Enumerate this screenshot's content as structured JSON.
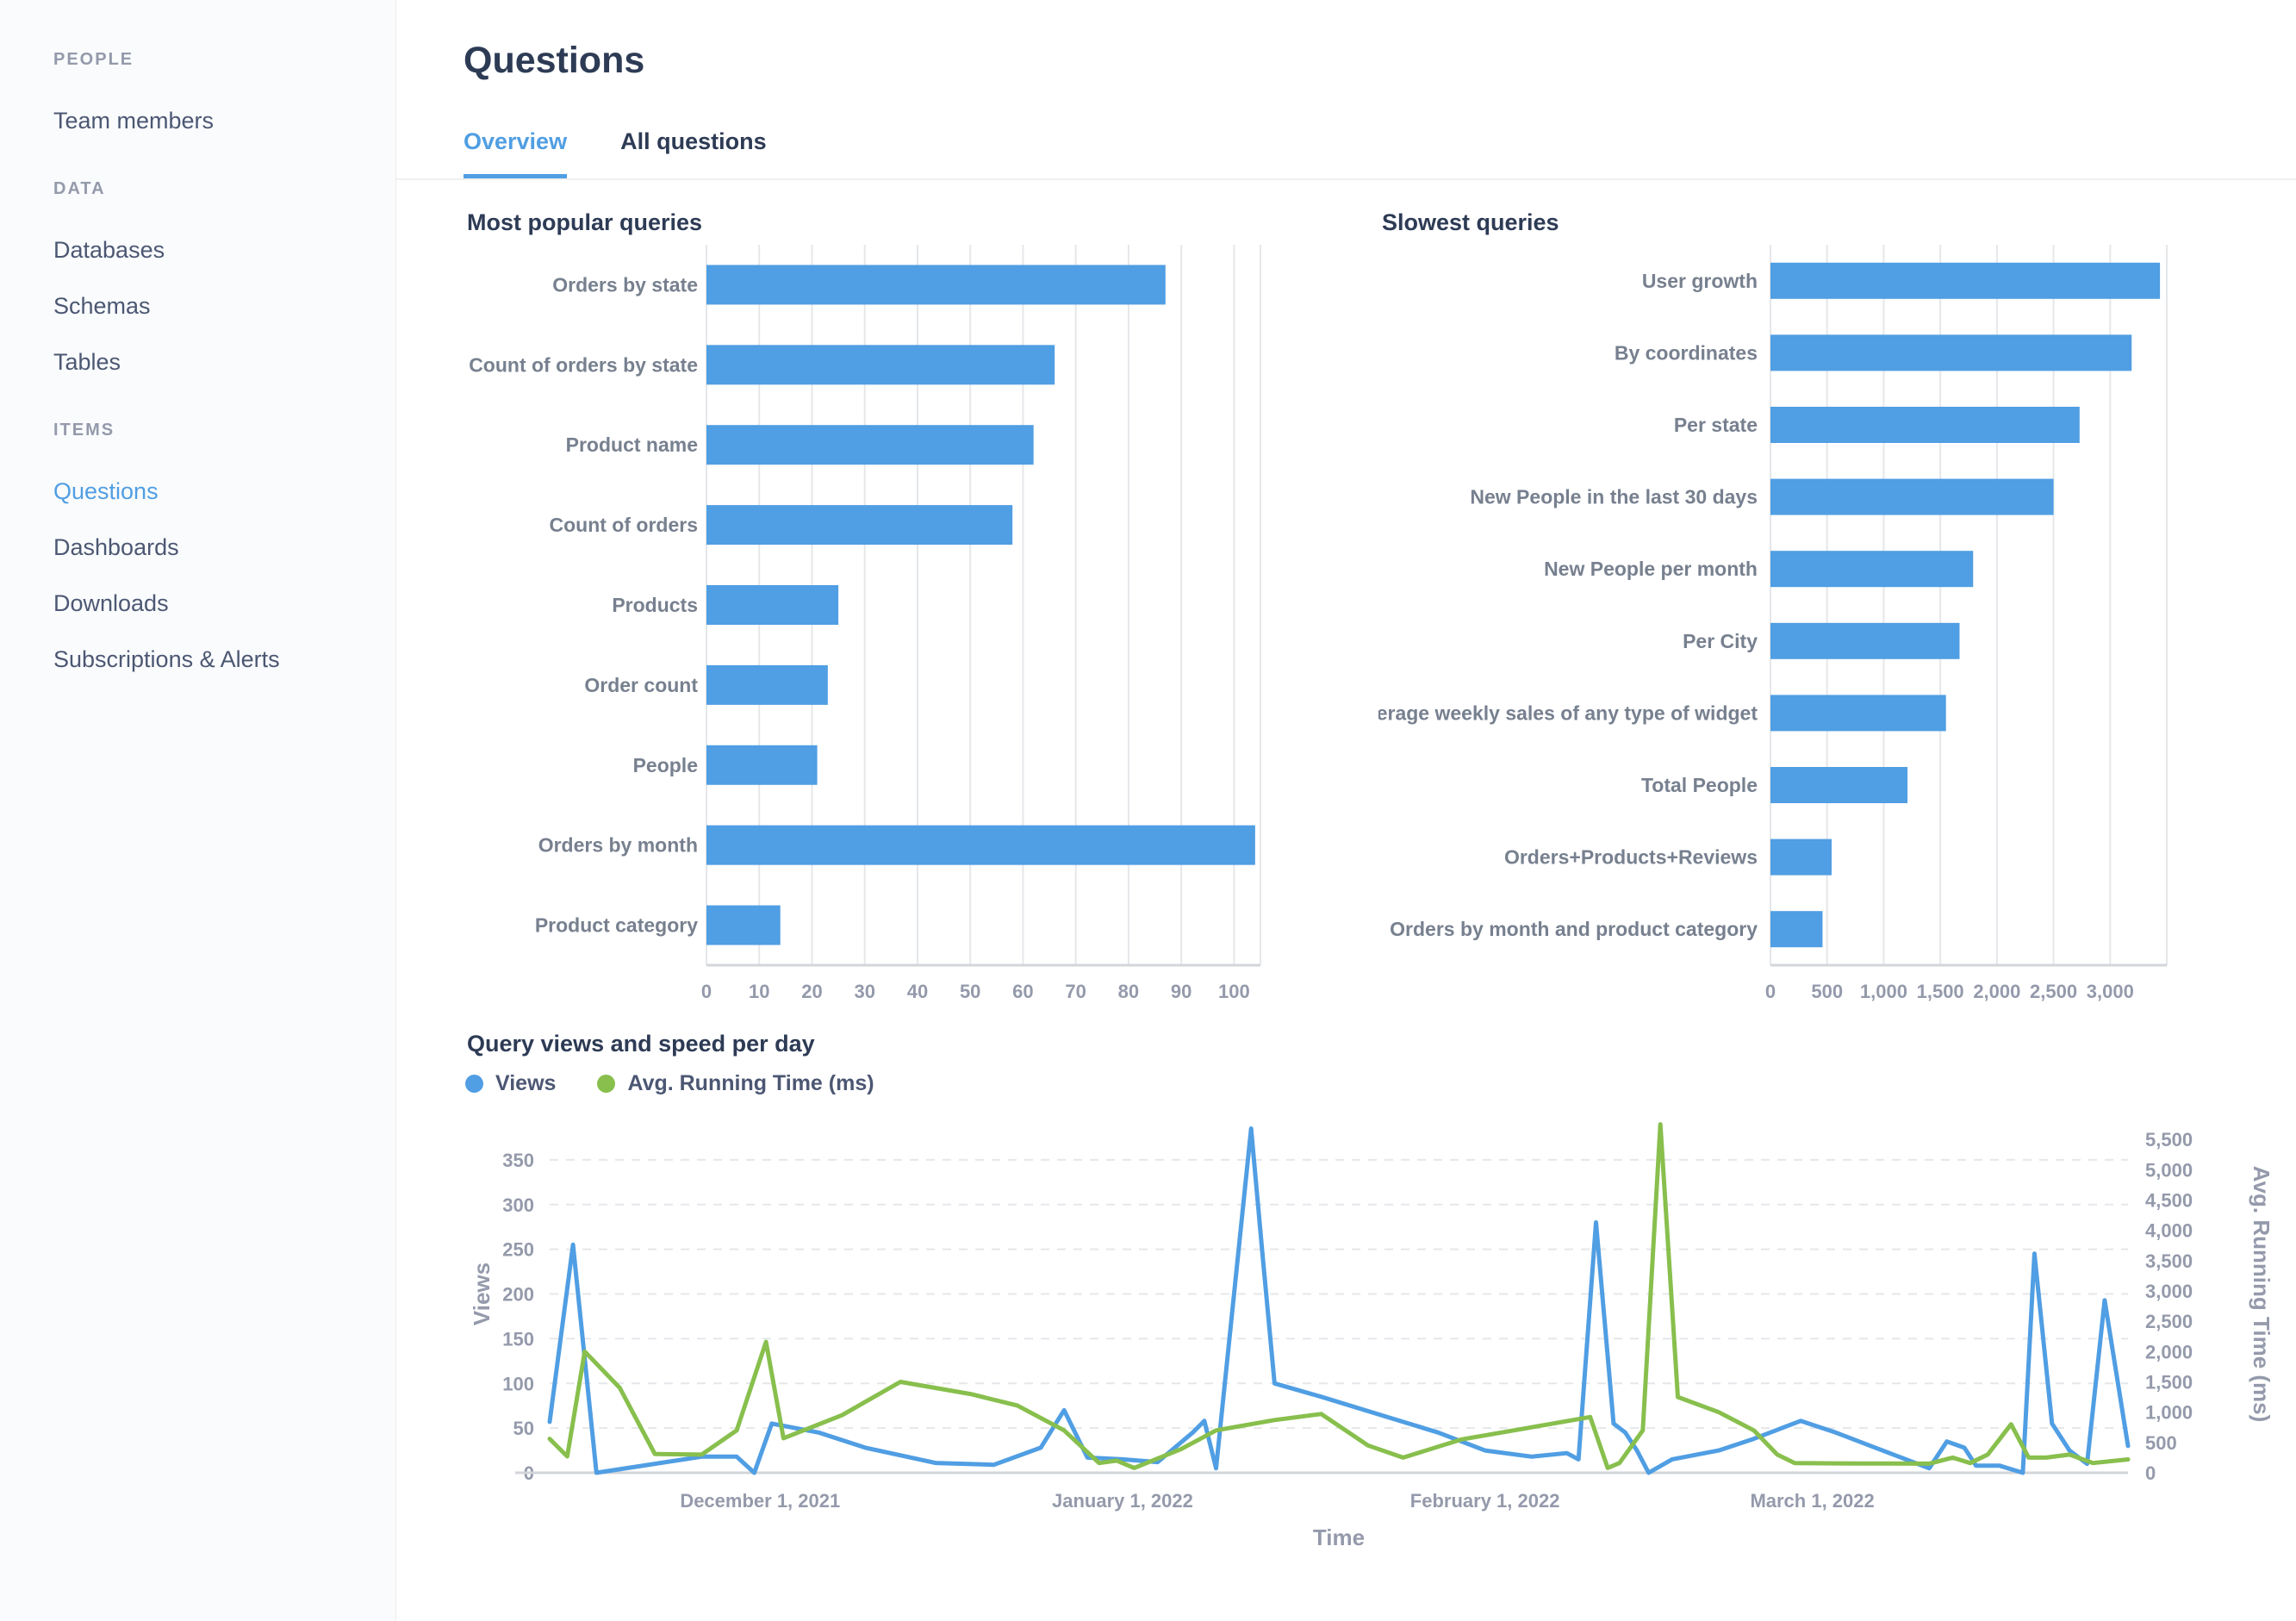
{
  "header": {
    "title": "Questions",
    "tabs": [
      {
        "label": "Overview",
        "active": true
      },
      {
        "label": "All questions",
        "active": false
      }
    ]
  },
  "sidebar": {
    "sections": [
      {
        "header": "PEOPLE",
        "items": [
          {
            "label": "Team members",
            "active": false
          }
        ]
      },
      {
        "header": "DATA",
        "items": [
          {
            "label": "Databases",
            "active": false
          },
          {
            "label": "Schemas",
            "active": false
          },
          {
            "label": "Tables",
            "active": false
          }
        ]
      },
      {
        "header": "ITEMS",
        "items": [
          {
            "label": "Questions",
            "active": true
          },
          {
            "label": "Dashboards",
            "active": false
          },
          {
            "label": "Downloads",
            "active": false
          },
          {
            "label": "Subscriptions & Alerts",
            "active": false
          }
        ]
      }
    ]
  },
  "colors": {
    "accent": "#509EE3",
    "green": "#88BF4D",
    "heading": "#2D3B55",
    "muted": "#949AAB",
    "label": "#77808F",
    "grid": "#E5E7EA",
    "axis": "#D2D5D9"
  },
  "chart_data": [
    {
      "type": "bar",
      "orientation": "horizontal",
      "title": "Most popular queries",
      "categories": [
        "Orders by state",
        "Count of orders by state",
        "Product name",
        "Count of orders",
        "Products",
        "Order count",
        "People",
        "Orders by month",
        "Product category"
      ],
      "values": [
        87,
        66,
        62,
        58,
        25,
        23,
        21,
        104,
        14
      ],
      "xlim": [
        0,
        105
      ],
      "xticks": [
        0,
        10,
        20,
        30,
        40,
        50,
        60,
        70,
        80,
        90,
        100
      ],
      "xtick_labels": [
        "0",
        "10",
        "20",
        "30",
        "40",
        "50",
        "60",
        "70",
        "80",
        "90",
        "100"
      ],
      "color": "#509EE3"
    },
    {
      "type": "bar",
      "orientation": "horizontal",
      "title": "Slowest queries",
      "categories": [
        "User growth",
        "By coordinates",
        "Per state",
        "New People in the last 30 days",
        "New People per month",
        "Per City",
        "Average weekly sales of any type of widget",
        "Total People",
        "Orders+Products+Reviews",
        "Orders by month and product category"
      ],
      "values": [
        3440,
        3190,
        2730,
        2500,
        1790,
        1670,
        1550,
        1210,
        540,
        460
      ],
      "xlim": [
        0,
        3500
      ],
      "xticks": [
        0,
        500,
        1000,
        1500,
        2000,
        2500,
        3000
      ],
      "xtick_labels": [
        "0",
        "500",
        "1,000",
        "1,500",
        "2,000",
        "2,500",
        "3,000"
      ],
      "color": "#509EE3"
    },
    {
      "type": "line",
      "title": "Query views and speed per day",
      "xlabel": "Time",
      "x_domain": [
        0,
        135
      ],
      "x_start_date": "November 13, 2021",
      "x_ticks": [
        {
          "day": 18,
          "label": "December 1, 2021"
        },
        {
          "day": 49,
          "label": "January 1, 2022"
        },
        {
          "day": 80,
          "label": "February 1, 2022"
        },
        {
          "day": 108,
          "label": "March 1, 2022"
        }
      ],
      "axes": {
        "left": {
          "title": "Views",
          "max": 400,
          "ticks": [
            0,
            50,
            100,
            150,
            200,
            250,
            300,
            350
          ],
          "tick_labels": [
            "0",
            "50",
            "100",
            "150",
            "200",
            "250",
            "300",
            "350"
          ]
        },
        "right": {
          "title": "Avg. Running Time (ms)",
          "max": 5900,
          "ticks": [
            0,
            500,
            1000,
            1500,
            2000,
            2500,
            3000,
            3500,
            4000,
            4500,
            5000,
            5500
          ],
          "tick_labels": [
            "0",
            "500",
            "1,000",
            "1,500",
            "2,000",
            "2,500",
            "3,000",
            "3,500",
            "4,000",
            "4,500",
            "5,000",
            "5,500"
          ]
        }
      },
      "series": [
        {
          "name": "Views",
          "axis": "left",
          "color": "#509EE3",
          "points": [
            [
              0,
              57
            ],
            [
              2,
              255
            ],
            [
              4,
              0
            ],
            [
              9,
              10
            ],
            [
              13,
              18
            ],
            [
              16,
              18
            ],
            [
              17.5,
              0
            ],
            [
              19,
              55
            ],
            [
              23,
              45
            ],
            [
              27,
              28
            ],
            [
              33,
              11
            ],
            [
              38,
              9
            ],
            [
              42,
              28
            ],
            [
              44,
              70
            ],
            [
              46,
              17
            ],
            [
              49,
              15
            ],
            [
              52,
              12
            ],
            [
              55,
              45
            ],
            [
              56,
              58
            ],
            [
              57,
              5
            ],
            [
              60,
              385
            ],
            [
              61,
              240
            ],
            [
              62,
              100
            ],
            [
              66,
              85
            ],
            [
              71,
              65
            ],
            [
              76,
              45
            ],
            [
              80,
              25
            ],
            [
              84,
              18
            ],
            [
              87,
              22
            ],
            [
              88,
              15
            ],
            [
              89.5,
              280
            ],
            [
              91,
              55
            ],
            [
              92,
              45
            ],
            [
              93,
              25
            ],
            [
              94,
              0
            ],
            [
              96,
              15
            ],
            [
              100,
              25
            ],
            [
              103,
              38
            ],
            [
              105,
              48
            ],
            [
              107,
              58
            ],
            [
              110,
              45
            ],
            [
              113,
              30
            ],
            [
              116,
              15
            ],
            [
              118,
              5
            ],
            [
              119.5,
              35
            ],
            [
              121,
              28
            ],
            [
              122,
              8
            ],
            [
              124,
              8
            ],
            [
              126,
              0
            ],
            [
              127,
              245
            ],
            [
              128.5,
              55
            ],
            [
              130,
              25
            ],
            [
              131.5,
              10
            ],
            [
              133,
              193
            ],
            [
              135,
              30
            ]
          ]
        },
        {
          "name": "Avg. Running Time (ms)",
          "axis": "right",
          "color": "#88BF4D",
          "points": [
            [
              0,
              560
            ],
            [
              1.5,
              270
            ],
            [
              3,
              2000
            ],
            [
              6,
              1400
            ],
            [
              9,
              310
            ],
            [
              13,
              300
            ],
            [
              16,
              700
            ],
            [
              18.5,
              2160
            ],
            [
              20,
              570
            ],
            [
              25,
              950
            ],
            [
              30,
              1500
            ],
            [
              36,
              1300
            ],
            [
              40,
              1110
            ],
            [
              44,
              700
            ],
            [
              47,
              160
            ],
            [
              48.5,
              200
            ],
            [
              50,
              80
            ],
            [
              54,
              390
            ],
            [
              57,
              700
            ],
            [
              62,
              870
            ],
            [
              66,
              970
            ],
            [
              70,
              450
            ],
            [
              73,
              250
            ],
            [
              78,
              550
            ],
            [
              84,
              750
            ],
            [
              89,
              920
            ],
            [
              90.5,
              80
            ],
            [
              91.5,
              160
            ],
            [
              93.5,
              700
            ],
            [
              95,
              5750
            ],
            [
              96.5,
              1250
            ],
            [
              100,
              1000
            ],
            [
              103,
              700
            ],
            [
              105,
              300
            ],
            [
              106.5,
              160
            ],
            [
              110,
              155
            ],
            [
              114,
              152
            ],
            [
              118,
              150
            ],
            [
              120,
              250
            ],
            [
              121.5,
              160
            ],
            [
              123,
              300
            ],
            [
              125,
              800
            ],
            [
              126.5,
              250
            ],
            [
              128,
              250
            ],
            [
              130,
              300
            ],
            [
              132,
              160
            ],
            [
              135,
              220
            ]
          ]
        }
      ]
    }
  ]
}
